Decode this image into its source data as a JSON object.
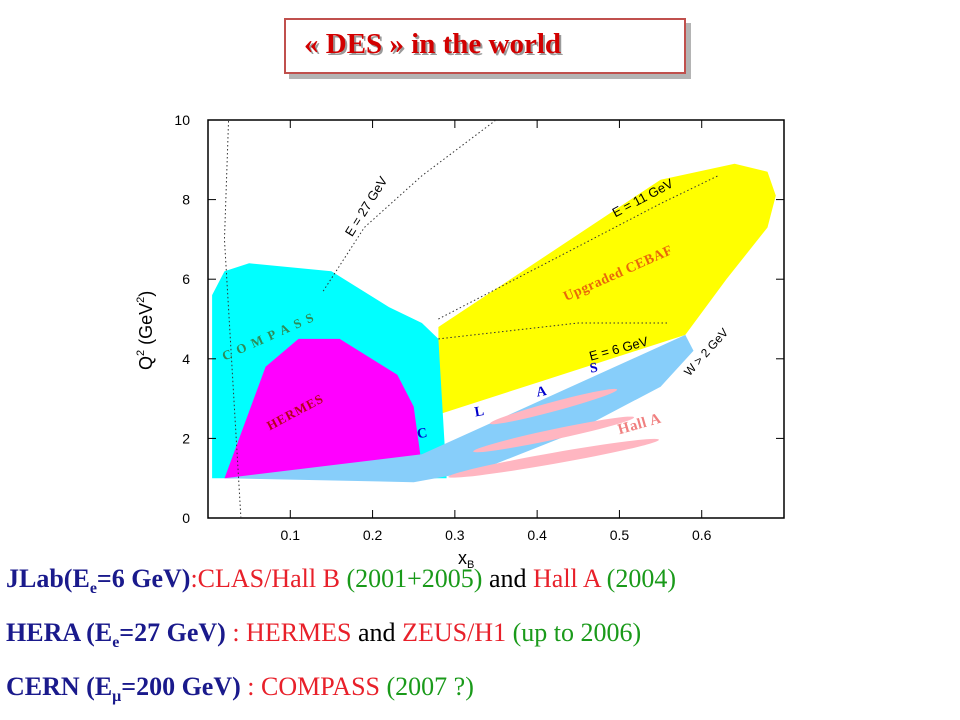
{
  "title": "« DES » in the world",
  "chart_data": {
    "type": "area",
    "xlabel": "x",
    "xlabel_sub": "B",
    "ylabel": "Q",
    "ylabel_sup": "2",
    "ylabel_unit": " (GeV",
    "ylabel_unit_sup": "2",
    "ylabel_close": ")",
    "xlim": [
      0,
      0.7
    ],
    "ylim": [
      0,
      10
    ],
    "xticks": [
      "0.1",
      "0.2",
      "0.3",
      "0.4",
      "0.5",
      "0.6"
    ],
    "yticks": [
      "0",
      "2",
      "4",
      "6",
      "8",
      "10"
    ],
    "regions": [
      {
        "name": "Upgraded CEBAF",
        "color": "#ffff00",
        "points": [
          [
            0.28,
            4.8
          ],
          [
            0.55,
            8.5
          ],
          [
            0.64,
            8.9
          ],
          [
            0.68,
            8.7
          ],
          [
            0.69,
            8.1
          ],
          [
            0.68,
            7.3
          ],
          [
            0.63,
            6.0
          ],
          [
            0.58,
            4.6
          ],
          [
            0.28,
            2.6
          ]
        ]
      },
      {
        "name": "COMPASS",
        "color": "#00ffff",
        "points": [
          [
            0.005,
            1.0
          ],
          [
            0.005,
            5.6
          ],
          [
            0.02,
            6.2
          ],
          [
            0.05,
            6.4
          ],
          [
            0.15,
            6.2
          ],
          [
            0.22,
            5.3
          ],
          [
            0.26,
            4.9
          ],
          [
            0.28,
            4.5
          ],
          [
            0.29,
            1.0
          ]
        ]
      },
      {
        "name": "HERMES",
        "color": "#ff00ff",
        "points": [
          [
            0.02,
            1.0
          ],
          [
            0.07,
            3.8
          ],
          [
            0.11,
            4.5
          ],
          [
            0.16,
            4.5
          ],
          [
            0.23,
            3.6
          ],
          [
            0.25,
            2.8
          ],
          [
            0.26,
            1.3
          ],
          [
            0.23,
            1.0
          ]
        ]
      },
      {
        "name": "CLAS",
        "color": "#87cefa",
        "points": [
          [
            0.02,
            1.0
          ],
          [
            0.26,
            1.6
          ],
          [
            0.58,
            4.6
          ],
          [
            0.59,
            4.2
          ],
          [
            0.55,
            3.3
          ],
          [
            0.44,
            2.1
          ],
          [
            0.33,
            1.2
          ],
          [
            0.25,
            0.9
          ]
        ]
      }
    ],
    "hall_a_ellipses": [
      {
        "cx": 0.42,
        "cy": 2.8,
        "rx": 0.08,
        "ry": 0.12,
        "angle": -15
      },
      {
        "cx": 0.42,
        "cy": 2.1,
        "rx": 0.1,
        "ry": 0.13,
        "angle": -12
      },
      {
        "cx": 0.42,
        "cy": 1.5,
        "rx": 0.13,
        "ry": 0.14,
        "angle": -10
      }
    ],
    "curves": [
      {
        "label": "E = 27 GeV"
      },
      {
        "label": "E = 11 GeV"
      },
      {
        "label": "E = 6 GeV"
      },
      {
        "label": "W > 2 GeV"
      }
    ],
    "annotations": [
      {
        "text": "COMPASS",
        "color": "#2e8b57"
      },
      {
        "text": "HERMES",
        "color": "#b8001c"
      },
      {
        "text": "Upgraded CEBAF",
        "color": "#e8680a"
      },
      {
        "text": "Hall A",
        "color": "#f08080"
      },
      {
        "text": "C",
        "color": "#0000cc"
      },
      {
        "text": "L",
        "color": "#0000cc"
      },
      {
        "text": "A",
        "color": "#0000cc"
      },
      {
        "text": "S",
        "color": "#0000cc"
      }
    ]
  },
  "lines": {
    "l1": {
      "a": "JLab(E",
      "a_sub": "e",
      "a_rest": "=6 GeV)",
      "colon": ":",
      "b": "CLAS/Hall B",
      "c": " (2001+2005)",
      "d": " and ",
      "e": "Hall A",
      "f": " (2004)"
    },
    "l2": {
      "a": "HERA (E",
      "a_sub": "e",
      "a_rest": "=27 GeV)",
      "colon": " : ",
      "b": "HERMES",
      "d": " and ",
      "e": "ZEUS/H1",
      "f": " (up to 2006)"
    },
    "l3": {
      "a": "CERN (E",
      "a_sub": "μ",
      "a_rest": "=200 GeV)",
      "colon": " : ",
      "b": "COMPASS",
      "f": " (2007 ?)"
    }
  }
}
